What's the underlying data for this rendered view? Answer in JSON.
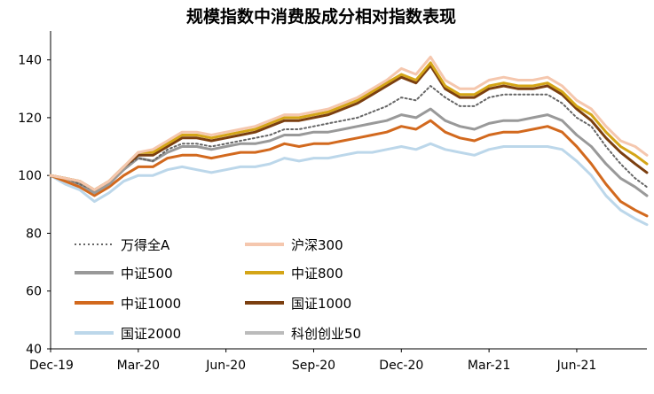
{
  "chart_data": {
    "type": "line",
    "title": "规模指数中消费股成分相对指数表现",
    "xlabel": "",
    "ylabel": "",
    "ylim": [
      40,
      150
    ],
    "yticks": [
      40,
      60,
      80,
      100,
      120,
      140
    ],
    "x_tick_labels": [
      "Dec-19",
      "Mar-20",
      "Jun-20",
      "Sep-20",
      "Dec-20",
      "Mar-21",
      "Jun-21"
    ],
    "x_tick_positions": [
      0,
      3,
      6,
      9,
      12,
      15,
      18
    ],
    "xlim": [
      0,
      20.4
    ],
    "grid": false,
    "legend": "bottom-left, 2 columns",
    "series": [
      {
        "name": "万得全A",
        "color": "#666666",
        "dash": true,
        "x": [
          0,
          0.5,
          1,
          1.5,
          2,
          2.5,
          3,
          3.5,
          4,
          4.5,
          5,
          5.5,
          6,
          6.5,
          7,
          7.5,
          8,
          8.5,
          9,
          9.5,
          10,
          10.5,
          11,
          11.5,
          12,
          12.5,
          13,
          13.5,
          14,
          14.5,
          15,
          15.5,
          16,
          16.5,
          17,
          17.5,
          18,
          18.5,
          19,
          19.5,
          20,
          20.4
        ],
        "y": [
          100,
          99,
          97,
          95,
          98,
          103,
          106,
          105,
          109,
          111,
          111,
          110,
          111,
          112,
          113,
          114,
          116,
          116,
          117,
          118,
          119,
          120,
          122,
          124,
          127,
          126,
          131,
          127,
          124,
          124,
          127,
          128,
          128,
          128,
          128,
          125,
          120,
          117,
          110,
          104,
          99,
          96
        ]
      },
      {
        "name": "沪深300",
        "color": "#F5C7AE",
        "x": [
          0,
          0.5,
          1,
          1.5,
          2,
          2.5,
          3,
          3.5,
          4,
          4.5,
          5,
          5.5,
          6,
          6.5,
          7,
          7.5,
          8,
          8.5,
          9,
          9.5,
          10,
          10.5,
          11,
          11.5,
          12,
          12.5,
          13,
          13.5,
          14,
          14.5,
          15,
          15.5,
          16,
          16.5,
          17,
          17.5,
          18,
          18.5,
          19,
          19.5,
          20,
          20.4
        ],
        "y": [
          100,
          99,
          98,
          95,
          98,
          103,
          108,
          109,
          112,
          115,
          115,
          114,
          115,
          116,
          117,
          119,
          121,
          121,
          122,
          123,
          125,
          127,
          130,
          133,
          137,
          135,
          141,
          133,
          130,
          130,
          133,
          134,
          133,
          133,
          134,
          131,
          126,
          123,
          117,
          112,
          110,
          107
        ]
      },
      {
        "name": "中证500",
        "color": "#999999",
        "x": [
          0,
          0.5,
          1,
          1.5,
          2,
          2.5,
          3,
          3.5,
          4,
          4.5,
          5,
          5.5,
          6,
          6.5,
          7,
          7.5,
          8,
          8.5,
          9,
          9.5,
          10,
          10.5,
          11,
          11.5,
          12,
          12.5,
          13,
          13.5,
          14,
          14.5,
          15,
          15.5,
          16,
          16.5,
          17,
          17.5,
          18,
          18.5,
          19,
          19.5,
          20,
          20.4
        ],
        "y": [
          100,
          99,
          97,
          94,
          97,
          102,
          106,
          105,
          108,
          110,
          110,
          109,
          110,
          111,
          111,
          112,
          114,
          114,
          115,
          115,
          116,
          117,
          118,
          119,
          121,
          120,
          123,
          119,
          117,
          116,
          118,
          119,
          119,
          120,
          121,
          119,
          114,
          110,
          104,
          99,
          96,
          93
        ]
      },
      {
        "name": "中证800",
        "color": "#D4A517",
        "x": [
          0,
          0.5,
          1,
          1.5,
          2,
          2.5,
          3,
          3.5,
          4,
          4.5,
          5,
          5.5,
          6,
          6.5,
          7,
          7.5,
          8,
          8.5,
          9,
          9.5,
          10,
          10.5,
          11,
          11.5,
          12,
          12.5,
          13,
          13.5,
          14,
          14.5,
          15,
          15.5,
          16,
          16.5,
          17,
          17.5,
          18,
          18.5,
          19,
          19.5,
          20,
          20.4
        ],
        "y": [
          100,
          99,
          98,
          95,
          98,
          103,
          108,
          108,
          111,
          114,
          114,
          113,
          114,
          115,
          116,
          118,
          120,
          120,
          121,
          122,
          124,
          126,
          129,
          132,
          135,
          133,
          139,
          131,
          128,
          128,
          131,
          132,
          131,
          131,
          132,
          129,
          124,
          121,
          115,
          110,
          107,
          104
        ]
      },
      {
        "name": "中证1000",
        "color": "#D2691E",
        "x": [
          0,
          0.5,
          1,
          1.5,
          2,
          2.5,
          3,
          3.5,
          4,
          4.5,
          5,
          5.5,
          6,
          6.5,
          7,
          7.5,
          8,
          8.5,
          9,
          9.5,
          10,
          10.5,
          11,
          11.5,
          12,
          12.5,
          13,
          13.5,
          14,
          14.5,
          15,
          15.5,
          16,
          16.5,
          17,
          17.5,
          18,
          18.5,
          19,
          19.5,
          20,
          20.4
        ],
        "y": [
          100,
          98,
          96,
          93,
          96,
          100,
          103,
          103,
          106,
          107,
          107,
          106,
          107,
          108,
          108,
          109,
          111,
          110,
          111,
          111,
          112,
          113,
          114,
          115,
          117,
          116,
          119,
          115,
          113,
          112,
          114,
          115,
          115,
          116,
          117,
          115,
          110,
          104,
          97,
          91,
          88,
          86
        ]
      },
      {
        "name": "国证1000",
        "color": "#7B3F10",
        "x": [
          0,
          0.5,
          1,
          1.5,
          2,
          2.5,
          3,
          3.5,
          4,
          4.5,
          5,
          5.5,
          6,
          6.5,
          7,
          7.5,
          8,
          8.5,
          9,
          9.5,
          10,
          10.5,
          11,
          11.5,
          12,
          12.5,
          13,
          13.5,
          14,
          14.5,
          15,
          15.5,
          16,
          16.5,
          17,
          17.5,
          18,
          18.5,
          19,
          19.5,
          20,
          20.4
        ],
        "y": [
          100,
          99,
          98,
          95,
          98,
          103,
          107,
          107,
          110,
          113,
          113,
          112,
          113,
          114,
          115,
          117,
          119,
          119,
          120,
          121,
          123,
          125,
          128,
          131,
          134,
          132,
          138,
          130,
          127,
          127,
          130,
          131,
          130,
          130,
          131,
          128,
          123,
          119,
          113,
          108,
          104,
          101
        ]
      },
      {
        "name": "国证2000",
        "color": "#BCD7EA",
        "x": [
          0,
          0.5,
          1,
          1.5,
          2,
          2.5,
          3,
          3.5,
          4,
          4.5,
          5,
          5.5,
          6,
          6.5,
          7,
          7.5,
          8,
          8.5,
          9,
          9.5,
          10,
          10.5,
          11,
          11.5,
          12,
          12.5,
          13,
          13.5,
          14,
          14.5,
          15,
          15.5,
          16,
          16.5,
          17,
          17.5,
          18,
          18.5,
          19,
          19.5,
          20,
          20.4
        ],
        "y": [
          100,
          97,
          95,
          91,
          94,
          98,
          100,
          100,
          102,
          103,
          102,
          101,
          102,
          103,
          103,
          104,
          106,
          105,
          106,
          106,
          107,
          108,
          108,
          109,
          110,
          109,
          111,
          109,
          108,
          107,
          109,
          110,
          110,
          110,
          110,
          109,
          105,
          100,
          93,
          88,
          85,
          83
        ]
      },
      {
        "name": "科创创业50",
        "color": "#BBBBBB",
        "x": [],
        "y": []
      }
    ]
  }
}
